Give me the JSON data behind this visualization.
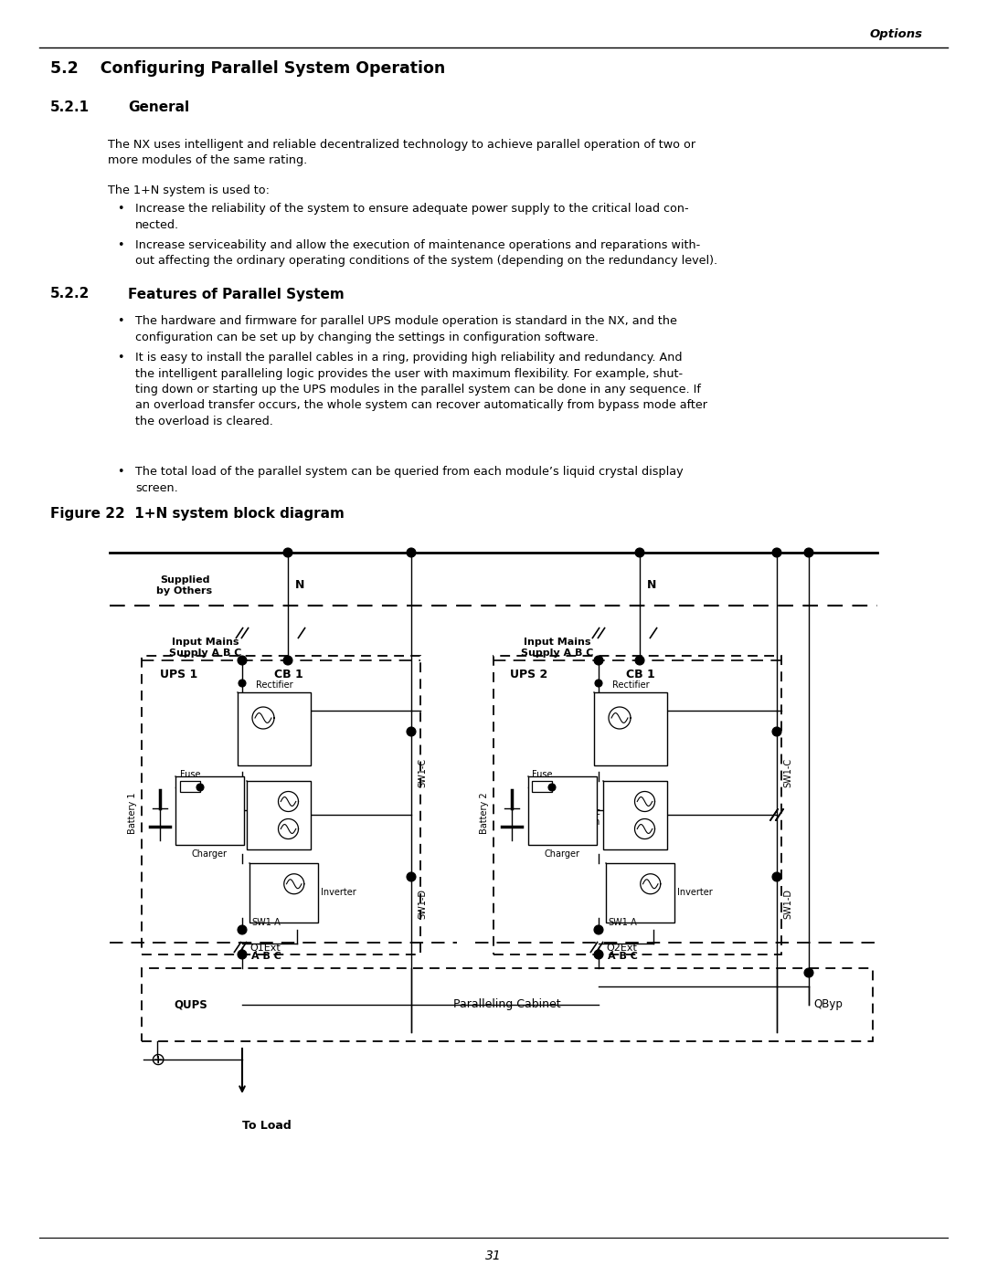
{
  "page_header_right": "Options",
  "section_title": "5.2    Configuring Parallel System Operation",
  "subsection1_num": "5.2.1",
  "subsection1_title": "General",
  "subsection2_num": "5.2.2",
  "subsection2_title": "Features of Parallel System",
  "figure_caption": "Figure 22  1+N system block diagram",
  "page_number": "31",
  "background_color": "#ffffff",
  "para1": "The NX uses intelligent and reliable decentralized technology to achieve parallel operation of two or\nmore modules of the same rating.",
  "para2": "The 1+N system is used to:",
  "bullet1_522": "Increase the reliability of the system to ensure adequate power supply to the critical load con-\nnected.",
  "bullet2_522": "Increase serviceability and allow the execution of maintenance operations and reparations with-\nout affecting the ordinary operating conditions of the system (depending on the redundancy level).",
  "bullet1_features": "The hardware and firmware for parallel UPS module operation is standard in the NX, and the\nconfiguration can be set up by changing the settings in configuration software.",
  "bullet2_features": "It is easy to install the parallel cables in a ring, providing high reliability and redundancy. And\nthe intelligent paralleling logic provides the user with maximum flexibility. For example, shut-\nting down or starting up the UPS modules in the parallel system can be done in any sequence. If\nan overload transfer occurs, the whole system can recover automatically from bypass mode after\nthe overload is cleared.",
  "bullet3_features": "The total load of the parallel system can be queried from each module’s liquid crystal display\nscreen."
}
